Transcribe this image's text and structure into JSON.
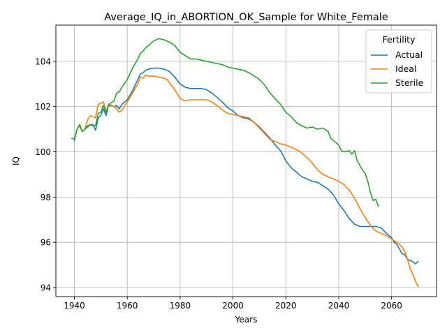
{
  "chart_data": {
    "type": "line",
    "title": "Average_IQ_in_ABORTION_OK_Sample for White_Female",
    "xlabel": "Years",
    "ylabel": "IQ",
    "xlim": [
      1933,
      2077
    ],
    "ylim": [
      93.6,
      105.6
    ],
    "xticks": [
      1940,
      1960,
      1980,
      2000,
      2020,
      2040,
      2060
    ],
    "yticks": [
      94,
      96,
      98,
      100,
      102,
      104
    ],
    "grid": true,
    "legend": {
      "title": "Fertility",
      "placement": "top-right",
      "entries": [
        "Actual",
        "Ideal",
        "Sterile"
      ]
    },
    "series": [
      {
        "name": "Actual",
        "color": "#1f77b4",
        "points": [
          [
            1940,
            100.5
          ],
          [
            1941,
            101.0
          ],
          [
            1942,
            101.2
          ],
          [
            1943,
            100.9
          ],
          [
            1944,
            101.0
          ],
          [
            1945,
            101.1
          ],
          [
            1946,
            101.2
          ],
          [
            1947,
            101.2
          ],
          [
            1948,
            100.95
          ],
          [
            1949,
            101.5
          ],
          [
            1950,
            101.6
          ],
          [
            1951,
            101.9
          ],
          [
            1952,
            101.6
          ],
          [
            1953,
            102.1
          ],
          [
            1955,
            102.0
          ],
          [
            1956,
            102.05
          ],
          [
            1957,
            101.9
          ],
          [
            1958,
            102.1
          ],
          [
            1960,
            102.3
          ],
          [
            1962,
            102.7
          ],
          [
            1964,
            103.2
          ],
          [
            1965,
            103.45
          ],
          [
            1966,
            103.5
          ],
          [
            1967,
            103.6
          ],
          [
            1968,
            103.65
          ],
          [
            1970,
            103.7
          ],
          [
            1972,
            103.7
          ],
          [
            1974,
            103.65
          ],
          [
            1975,
            103.6
          ],
          [
            1976,
            103.55
          ],
          [
            1978,
            103.3
          ],
          [
            1980,
            103.0
          ],
          [
            1982,
            102.85
          ],
          [
            1984,
            102.8
          ],
          [
            1986,
            102.8
          ],
          [
            1988,
            102.8
          ],
          [
            1990,
            102.75
          ],
          [
            1992,
            102.6
          ],
          [
            1994,
            102.4
          ],
          [
            1996,
            102.2
          ],
          [
            1998,
            101.95
          ],
          [
            2000,
            101.8
          ],
          [
            2002,
            101.6
          ],
          [
            2004,
            101.5
          ],
          [
            2006,
            101.45
          ],
          [
            2008,
            101.3
          ],
          [
            2010,
            101.1
          ],
          [
            2012,
            100.85
          ],
          [
            2014,
            100.6
          ],
          [
            2016,
            100.3
          ],
          [
            2018,
            100.05
          ],
          [
            2020,
            99.6
          ],
          [
            2022,
            99.3
          ],
          [
            2024,
            99.1
          ],
          [
            2026,
            98.9
          ],
          [
            2028,
            98.8
          ],
          [
            2030,
            98.7
          ],
          [
            2032,
            98.65
          ],
          [
            2034,
            98.5
          ],
          [
            2036,
            98.35
          ],
          [
            2038,
            98.1
          ],
          [
            2040,
            97.7
          ],
          [
            2042,
            97.4
          ],
          [
            2044,
            97.05
          ],
          [
            2046,
            96.8
          ],
          [
            2048,
            96.7
          ],
          [
            2050,
            96.7
          ],
          [
            2052,
            96.7
          ],
          [
            2054,
            96.7
          ],
          [
            2056,
            96.65
          ],
          [
            2058,
            96.4
          ],
          [
            2060,
            96.2
          ],
          [
            2061,
            96.0
          ],
          [
            2062,
            95.9
          ],
          [
            2063,
            95.7
          ],
          [
            2064,
            95.5
          ],
          [
            2065,
            95.45
          ],
          [
            2066,
            95.25
          ],
          [
            2067,
            95.2
          ],
          [
            2068,
            95.15
          ],
          [
            2069,
            95.05
          ],
          [
            2070,
            95.15
          ]
        ]
      },
      {
        "name": "Ideal",
        "color": "#ff7f0e",
        "points": [
          [
            1940,
            100.55
          ],
          [
            1941,
            101.0
          ],
          [
            1942,
            101.15
          ],
          [
            1943,
            100.9
          ],
          [
            1944,
            101.0
          ],
          [
            1945,
            101.4
          ],
          [
            1946,
            101.6
          ],
          [
            1947,
            101.55
          ],
          [
            1948,
            101.5
          ],
          [
            1949,
            102.1
          ],
          [
            1950,
            102.15
          ],
          [
            1951,
            102.2
          ],
          [
            1952,
            101.8
          ],
          [
            1953,
            102.05
          ],
          [
            1955,
            102.0
          ],
          [
            1956,
            101.9
          ],
          [
            1957,
            101.75
          ],
          [
            1958,
            101.85
          ],
          [
            1960,
            102.2
          ],
          [
            1962,
            102.6
          ],
          [
            1964,
            103.0
          ],
          [
            1965,
            103.3
          ],
          [
            1966,
            103.25
          ],
          [
            1967,
            103.4
          ],
          [
            1968,
            103.35
          ],
          [
            1970,
            103.35
          ],
          [
            1972,
            103.3
          ],
          [
            1974,
            103.25
          ],
          [
            1975,
            103.2
          ],
          [
            1976,
            103.05
          ],
          [
            1978,
            102.75
          ],
          [
            1980,
            102.35
          ],
          [
            1982,
            102.25
          ],
          [
            1984,
            102.3
          ],
          [
            1986,
            102.3
          ],
          [
            1988,
            102.3
          ],
          [
            1990,
            102.3
          ],
          [
            1992,
            102.2
          ],
          [
            1994,
            102.05
          ],
          [
            1996,
            101.85
          ],
          [
            1998,
            101.7
          ],
          [
            2000,
            101.65
          ],
          [
            2002,
            101.6
          ],
          [
            2004,
            101.55
          ],
          [
            2006,
            101.5
          ],
          [
            2008,
            101.3
          ],
          [
            2010,
            101.05
          ],
          [
            2012,
            100.8
          ],
          [
            2014,
            100.55
          ],
          [
            2016,
            100.45
          ],
          [
            2018,
            100.35
          ],
          [
            2020,
            100.3
          ],
          [
            2022,
            100.2
          ],
          [
            2024,
            100.1
          ],
          [
            2026,
            99.95
          ],
          [
            2028,
            99.75
          ],
          [
            2030,
            99.5
          ],
          [
            2032,
            99.2
          ],
          [
            2034,
            99.0
          ],
          [
            2036,
            98.9
          ],
          [
            2038,
            98.8
          ],
          [
            2040,
            98.7
          ],
          [
            2042,
            98.55
          ],
          [
            2044,
            98.3
          ],
          [
            2046,
            97.95
          ],
          [
            2048,
            97.5
          ],
          [
            2050,
            97.1
          ],
          [
            2052,
            96.75
          ],
          [
            2054,
            96.5
          ],
          [
            2056,
            96.4
          ],
          [
            2058,
            96.3
          ],
          [
            2060,
            96.15
          ],
          [
            2062,
            96.0
          ],
          [
            2064,
            95.8
          ],
          [
            2065,
            95.6
          ],
          [
            2066,
            95.25
          ],
          [
            2067,
            94.85
          ],
          [
            2068,
            94.6
          ],
          [
            2069,
            94.3
          ],
          [
            2070,
            94.05
          ]
        ]
      },
      {
        "name": "Sterile",
        "color": "#2ca02c",
        "points": [
          [
            1939,
            100.6
          ],
          [
            1940,
            100.55
          ],
          [
            1941,
            101.0
          ],
          [
            1942,
            101.2
          ],
          [
            1943,
            100.9
          ],
          [
            1944,
            101.0
          ],
          [
            1945,
            101.15
          ],
          [
            1946,
            101.2
          ],
          [
            1947,
            101.15
          ],
          [
            1948,
            101.15
          ],
          [
            1949,
            101.7
          ],
          [
            1950,
            101.75
          ],
          [
            1951,
            102.05
          ],
          [
            1952,
            101.75
          ],
          [
            1953,
            102.1
          ],
          [
            1955,
            102.25
          ],
          [
            1956,
            102.6
          ],
          [
            1957,
            102.65
          ],
          [
            1958,
            102.85
          ],
          [
            1960,
            103.2
          ],
          [
            1962,
            103.7
          ],
          [
            1964,
            104.1
          ],
          [
            1965,
            104.35
          ],
          [
            1966,
            104.45
          ],
          [
            1967,
            104.6
          ],
          [
            1968,
            104.7
          ],
          [
            1970,
            104.9
          ],
          [
            1972,
            105.0
          ],
          [
            1974,
            104.95
          ],
          [
            1976,
            104.85
          ],
          [
            1978,
            104.7
          ],
          [
            1980,
            104.4
          ],
          [
            1982,
            104.25
          ],
          [
            1984,
            104.1
          ],
          [
            1986,
            104.1
          ],
          [
            1988,
            104.05
          ],
          [
            1990,
            104.0
          ],
          [
            1992,
            103.95
          ],
          [
            1994,
            103.9
          ],
          [
            1996,
            103.85
          ],
          [
            1998,
            103.75
          ],
          [
            2000,
            103.7
          ],
          [
            2002,
            103.65
          ],
          [
            2004,
            103.6
          ],
          [
            2006,
            103.5
          ],
          [
            2008,
            103.35
          ],
          [
            2010,
            103.2
          ],
          [
            2012,
            102.95
          ],
          [
            2014,
            102.6
          ],
          [
            2016,
            102.35
          ],
          [
            2018,
            102.1
          ],
          [
            2020,
            101.75
          ],
          [
            2022,
            101.55
          ],
          [
            2024,
            101.3
          ],
          [
            2026,
            101.15
          ],
          [
            2028,
            101.05
          ],
          [
            2030,
            101.1
          ],
          [
            2032,
            101.0
          ],
          [
            2034,
            101.05
          ],
          [
            2036,
            100.9
          ],
          [
            2037,
            100.6
          ],
          [
            2038,
            100.5
          ],
          [
            2040,
            100.3
          ],
          [
            2041,
            100.05
          ],
          [
            2042,
            100.0
          ],
          [
            2044,
            100.05
          ],
          [
            2045,
            99.9
          ],
          [
            2046,
            100.05
          ],
          [
            2047,
            99.6
          ],
          [
            2048,
            99.4
          ],
          [
            2049,
            99.2
          ],
          [
            2050,
            99.05
          ],
          [
            2051,
            98.7
          ],
          [
            2052,
            98.2
          ],
          [
            2053,
            97.85
          ],
          [
            2054,
            97.9
          ],
          [
            2055,
            97.6
          ]
        ]
      }
    ]
  }
}
